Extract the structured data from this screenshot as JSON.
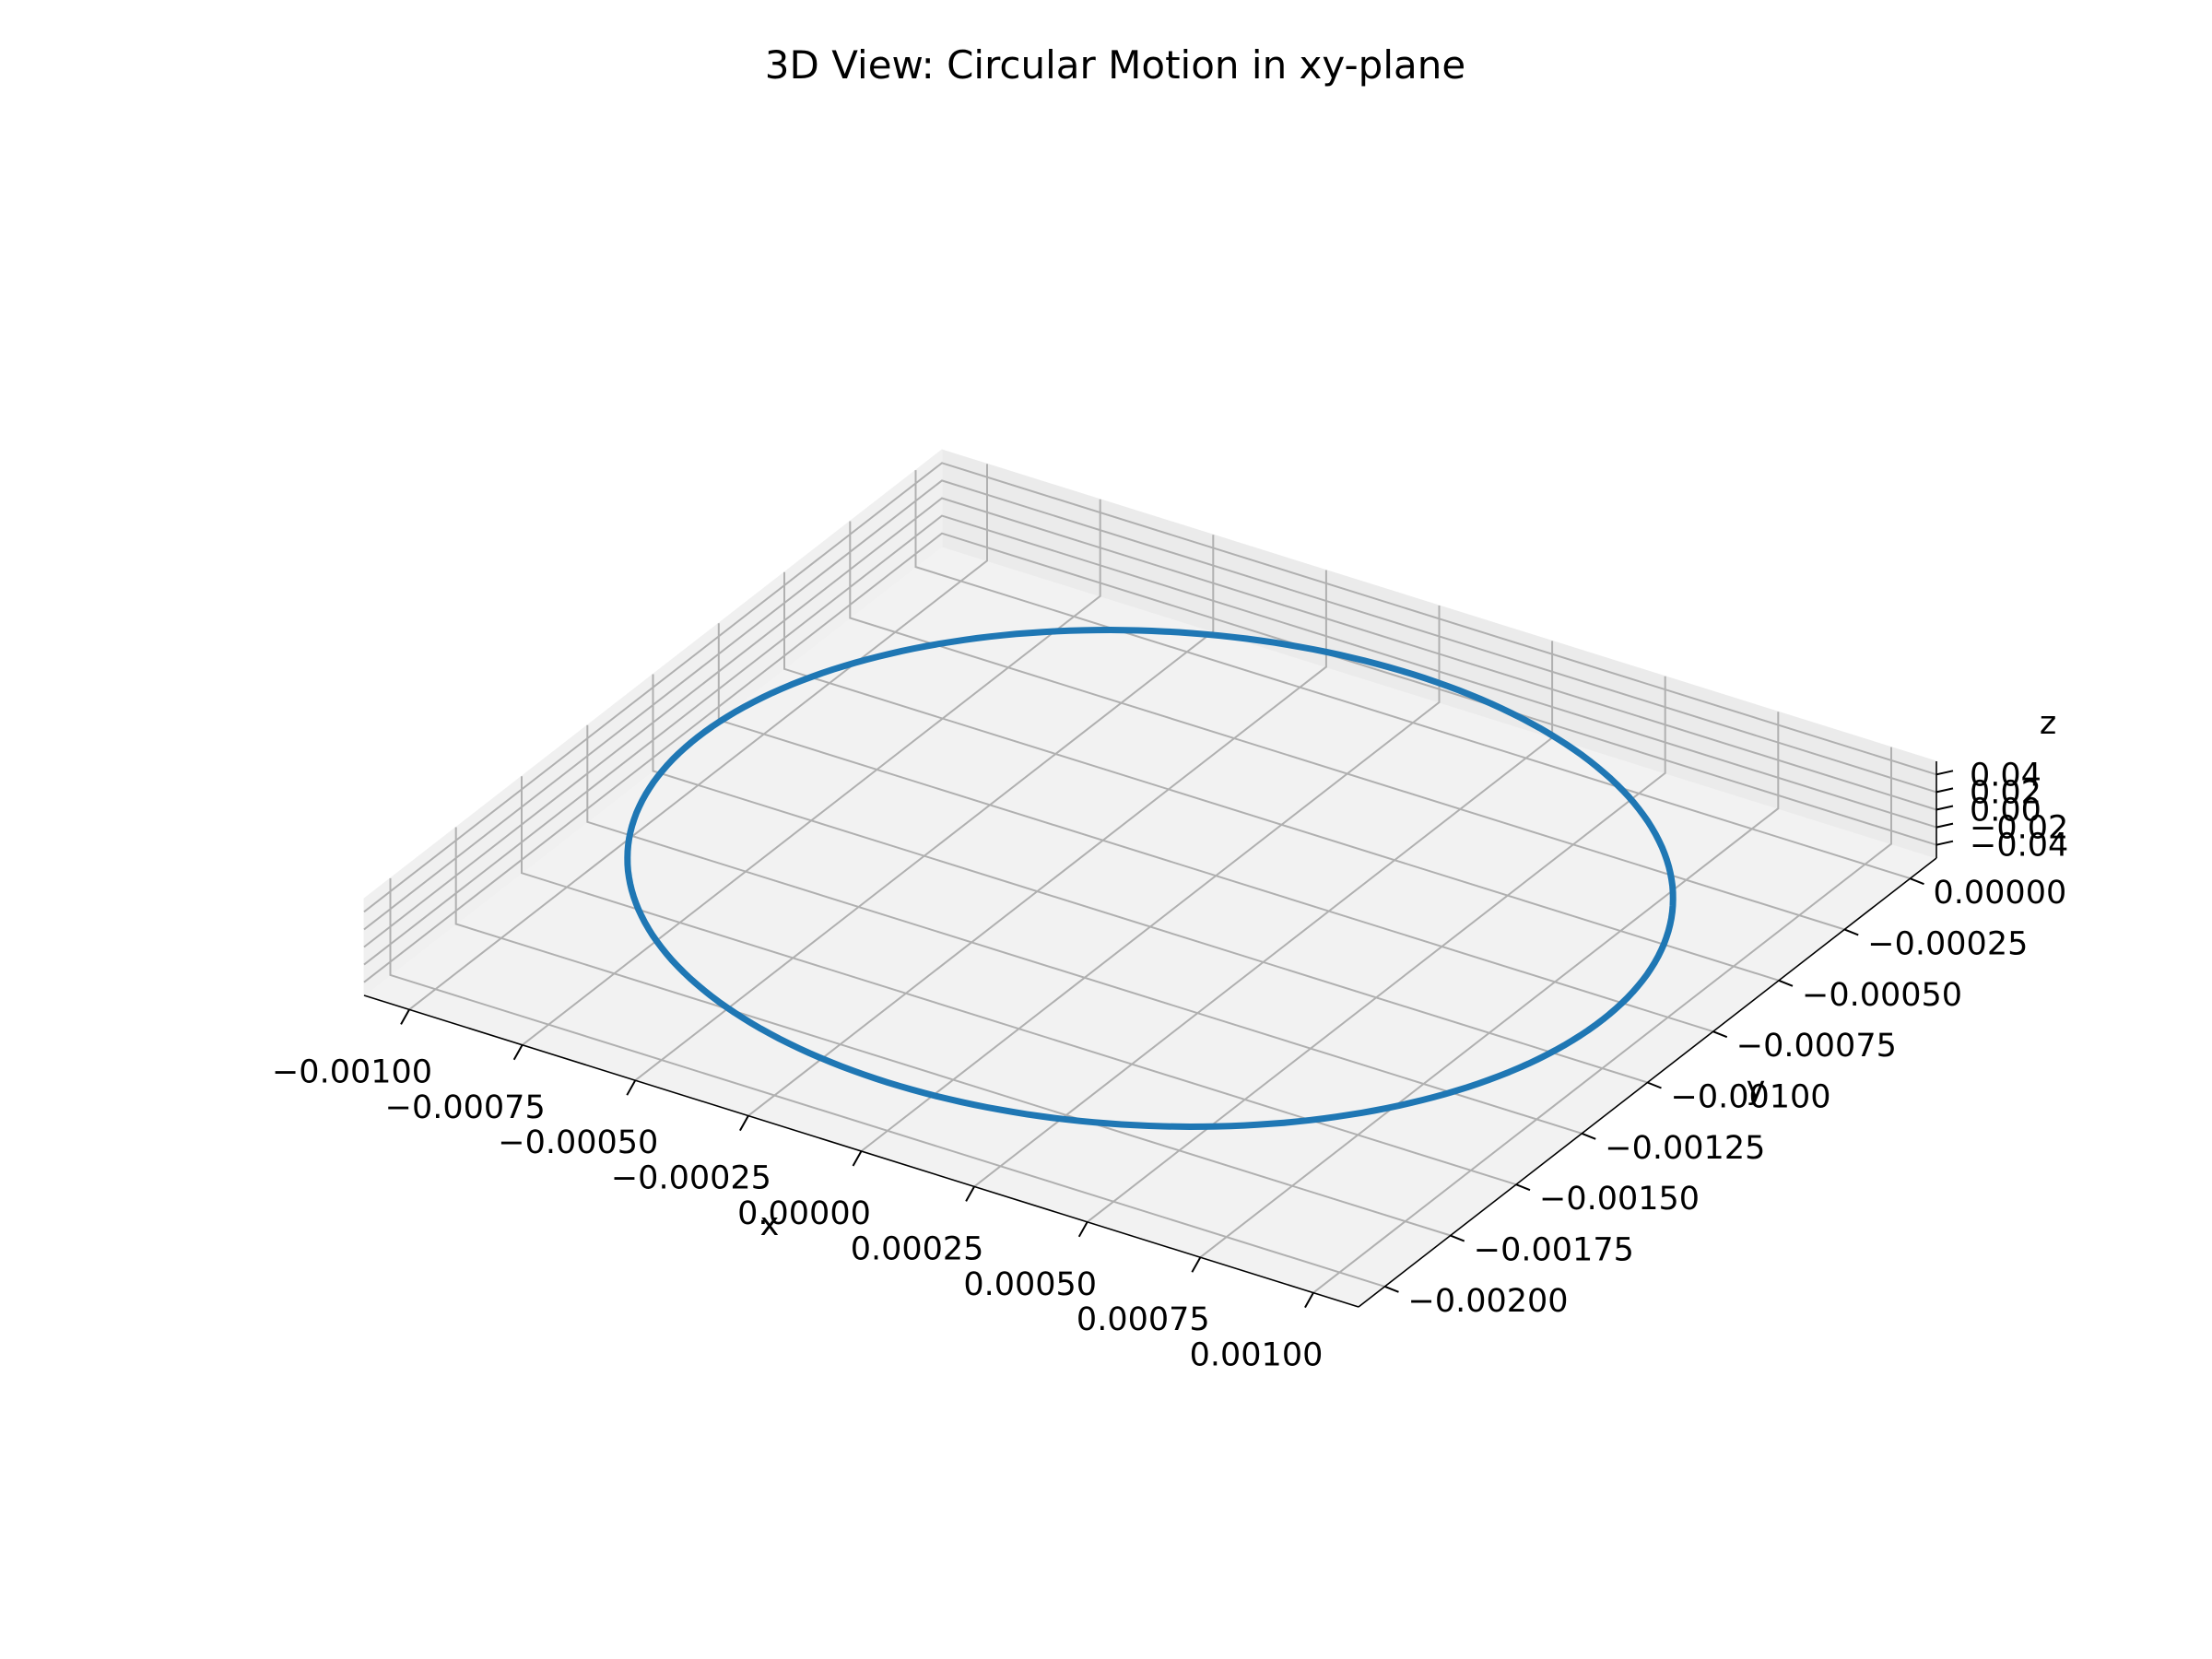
{
  "chart_data": {
    "type": "line",
    "projection": "3d",
    "title": "3D View: Circular Motion in xy-plane",
    "xlabel": "x",
    "ylabel": "y",
    "zlabel": "z",
    "grid": true,
    "xlim": [
      -0.0011,
      0.0011
    ],
    "ylim": [
      -0.0021,
      0.0001
    ],
    "zlim": [
      -0.055,
      0.055
    ],
    "x_ticks": [
      "−0.00100",
      "−0.00075",
      "−0.00050",
      "−0.00025",
      "0.00000",
      "0.00025",
      "0.00050",
      "0.00075",
      "0.00100"
    ],
    "y_ticks": [
      "−0.00200",
      "−0.00175",
      "−0.00150",
      "−0.00125",
      "−0.00100",
      "−0.00075",
      "−0.00050",
      "−0.00025",
      "0.00000"
    ],
    "z_ticks": [
      "−0.04",
      "−0.02",
      "0.00",
      "0.02",
      "0.04"
    ],
    "series": [
      {
        "color": "#1f77b4",
        "center": [
          0.0,
          -0.001,
          0.0
        ],
        "radius": 0.001,
        "z": 0.0
      }
    ]
  }
}
